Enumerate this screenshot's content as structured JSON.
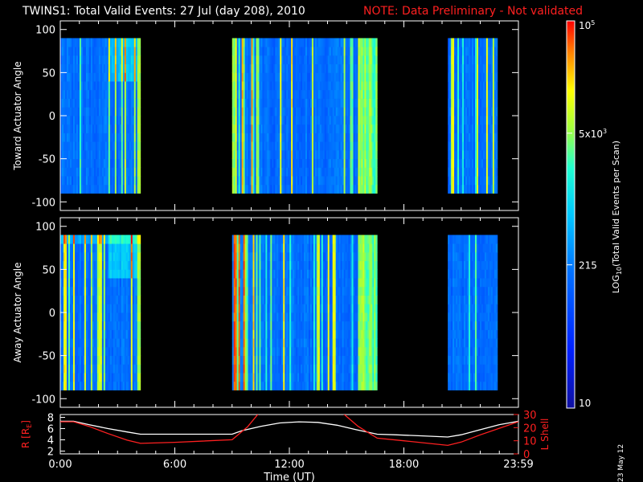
{
  "header": {
    "title": "TWINS1: Total Valid Events: 27 Jul (day 208), 2010",
    "note": "NOTE: Data Preliminary - Not validated"
  },
  "stamp": "23 May 12",
  "chart_data": [
    {
      "type": "heatmap",
      "panel": "top",
      "ylabel": "Toward Actuator Angle",
      "ylim": [
        -110,
        110
      ],
      "yticks": [
        "100",
        "50",
        "0",
        "-50",
        "-100"
      ],
      "yticks_values": [
        100,
        50,
        0,
        -50,
        -100
      ],
      "x_hours_range": [
        0,
        24
      ],
      "data_intervals_hours": [
        [
          0,
          4.2
        ],
        [
          9.0,
          16.6
        ],
        [
          20.3,
          22.9
        ]
      ],
      "angle_range": [
        -90,
        90
      ]
    },
    {
      "type": "heatmap",
      "panel": "middle",
      "ylabel": "Away Actuator Angle",
      "ylim": [
        -110,
        110
      ],
      "yticks": [
        "100",
        "50",
        "0",
        "-50",
        "-100"
      ],
      "yticks_values": [
        100,
        50,
        0,
        -50,
        -100
      ],
      "x_hours_range": [
        0,
        24
      ],
      "data_intervals_hours": [
        [
          0,
          4.2
        ],
        [
          9.0,
          16.6
        ],
        [
          20.3,
          22.9
        ]
      ],
      "angle_range": [
        -90,
        90
      ]
    },
    {
      "type": "line",
      "panel": "bottom",
      "xlabel": "Time (UT)",
      "xticks": [
        "0:00",
        "6:00",
        "12:00",
        "18:00",
        "23:59"
      ],
      "xticks_hours": [
        0,
        6,
        12,
        18,
        24
      ],
      "ylabel_left": "R [R",
      "ylabel_left_sub": "E",
      "ylabel_left_end": "]",
      "yticks_left": [
        "8",
        "6",
        "4",
        "2"
      ],
      "yticks_left_values": [
        8,
        6,
        4,
        2
      ],
      "ylim_left": [
        1.5,
        8.5
      ],
      "ylabel_right": "L Shell",
      "yticks_right": [
        "30",
        "20",
        "10",
        "0"
      ],
      "yticks_right_values": [
        30,
        20,
        10,
        0
      ],
      "ylim_right": [
        0,
        30
      ],
      "series": [
        {
          "color": "#ffffff",
          "x": [
            0,
            0.7,
            1.5,
            2.5,
            3.5,
            4.2,
            5,
            6,
            7,
            8,
            9,
            9.5,
            10.5,
            11.5,
            12.5,
            13.5,
            14.5,
            15.5,
            16.6,
            17.5,
            19,
            20.3,
            21,
            22,
            23,
            24
          ],
          "y": [
            7.3,
            7.3,
            6.7,
            6.0,
            5.4,
            5.0,
            5.0,
            5.0,
            5.0,
            5.0,
            5.0,
            5.6,
            6.4,
            7.0,
            7.2,
            7.1,
            6.6,
            5.8,
            5.0,
            4.9,
            4.7,
            4.5,
            4.9,
            5.8,
            6.7,
            7.3
          ]
        },
        {
          "color": "#ff2020",
          "x": [
            0,
            0.7,
            1.5,
            2.5,
            3.5,
            4.2,
            6,
            9.0,
            9.8,
            10.4
          ],
          "y": [
            24.5,
            24.5,
            21.0,
            15.5,
            10.5,
            8.0,
            8.8,
            10.8,
            20.5,
            31.0
          ]
        },
        {
          "color": "#ff2020",
          "x": [
            14.8,
            15.6,
            16.6,
            18,
            20.3,
            21,
            22,
            23,
            24
          ],
          "y": [
            31.0,
            21.0,
            12.0,
            10.0,
            6.5,
            9.0,
            14.5,
            19.5,
            24.5
          ]
        }
      ]
    }
  ],
  "colorbar": {
    "label_prefix": "LOG",
    "label_sub": "10",
    "label_suffix": "(Total Valid Events per Scan)",
    "ticks": [
      {
        "text": "10",
        "sup": "5"
      },
      {
        "text": "5x10",
        "sup": "3"
      },
      {
        "text": "215",
        "sup": ""
      },
      {
        "text": "10",
        "sup": ""
      }
    ],
    "tick_levels": [
      1.0,
      0.71,
      0.37,
      0.0
    ]
  }
}
